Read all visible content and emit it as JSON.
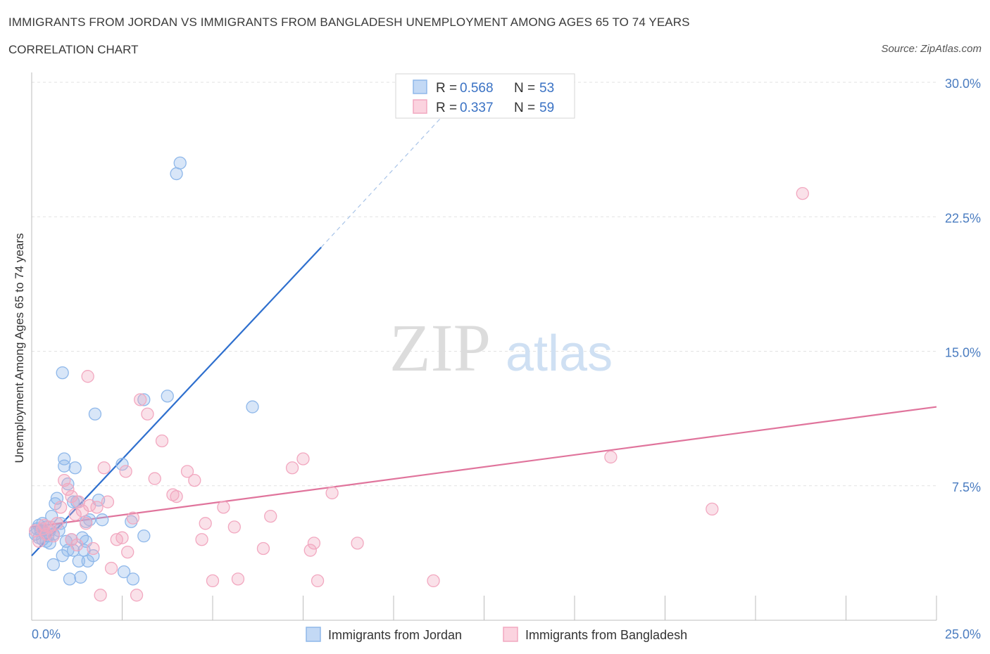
{
  "header": {
    "title": "IMMIGRANTS FROM JORDAN VS IMMIGRANTS FROM BANGLADESH UNEMPLOYMENT AMONG AGES 65 TO 74 YEARS",
    "subtitle": "CORRELATION CHART",
    "source": "Source: ZipAtlas.com"
  },
  "watermark": {
    "zip": "ZIP",
    "atlas": "atlas"
  },
  "chart_data": {
    "type": "scatter",
    "ylabel": "Unemployment Among Ages 65 to 74 years",
    "xlim": [
      0,
      25
    ],
    "ylim": [
      0,
      30
    ],
    "x_tick_labels": [
      "0.0%",
      "25.0%"
    ],
    "y_ticks": [
      7.5,
      15.0,
      22.5,
      30.0
    ],
    "y_tick_labels": [
      "7.5%",
      "15.0%",
      "22.5%",
      "30.0%"
    ],
    "grid": true,
    "legend_stats": [
      {
        "r_label": "R =",
        "r_value": "0.568",
        "n_label": "N =",
        "n_value": "53",
        "color": "#8fb8ea"
      },
      {
        "r_label": "R =",
        "r_value": "0.337",
        "n_label": "N =",
        "n_value": "59",
        "color": "#f2a8c0"
      }
    ],
    "series": [
      {
        "name": "Immigrants from Jordan",
        "color": "#8fb8ea",
        "line_color": "#2e6fce",
        "trend": {
          "x0": 0.0,
          "y0": 3.6,
          "x1": 8.0,
          "y1": 20.8,
          "dash_x1": 11.3,
          "dash_y1": 28.0
        },
        "points": [
          [
            0.1,
            4.8
          ],
          [
            0.15,
            5.1
          ],
          [
            0.2,
            4.6
          ],
          [
            0.2,
            5.3
          ],
          [
            0.25,
            5.0
          ],
          [
            0.3,
            4.5
          ],
          [
            0.3,
            5.4
          ],
          [
            0.35,
            4.9
          ],
          [
            0.4,
            4.4
          ],
          [
            0.4,
            5.2
          ],
          [
            0.45,
            4.7
          ],
          [
            0.5,
            5.0
          ],
          [
            0.5,
            4.3
          ],
          [
            0.55,
            5.8
          ],
          [
            0.6,
            3.1
          ],
          [
            0.6,
            4.8
          ],
          [
            0.65,
            6.5
          ],
          [
            0.7,
            6.8
          ],
          [
            0.75,
            5.0
          ],
          [
            0.8,
            5.4
          ],
          [
            0.85,
            3.6
          ],
          [
            0.85,
            13.8
          ],
          [
            0.9,
            8.6
          ],
          [
            0.9,
            9.0
          ],
          [
            0.95,
            4.4
          ],
          [
            1.0,
            3.9
          ],
          [
            1.0,
            7.6
          ],
          [
            1.05,
            2.3
          ],
          [
            1.1,
            4.5
          ],
          [
            1.15,
            3.9
          ],
          [
            1.15,
            6.6
          ],
          [
            1.2,
            8.5
          ],
          [
            1.25,
            6.6
          ],
          [
            1.3,
            3.3
          ],
          [
            1.35,
            2.4
          ],
          [
            1.4,
            4.6
          ],
          [
            1.45,
            3.9
          ],
          [
            1.5,
            4.4
          ],
          [
            1.5,
            5.5
          ],
          [
            1.55,
            3.3
          ],
          [
            1.6,
            5.6
          ],
          [
            1.7,
            3.6
          ],
          [
            1.75,
            11.5
          ],
          [
            1.85,
            6.7
          ],
          [
            1.95,
            5.6
          ],
          [
            2.5,
            8.7
          ],
          [
            2.55,
            2.7
          ],
          [
            2.75,
            5.5
          ],
          [
            2.8,
            2.3
          ],
          [
            3.1,
            4.7
          ],
          [
            3.1,
            12.3
          ],
          [
            3.75,
            12.5
          ],
          [
            4.0,
            24.9
          ],
          [
            4.1,
            25.5
          ],
          [
            6.1,
            11.9
          ]
        ]
      },
      {
        "name": "Immigrants from Bangladesh",
        "color": "#f2a8c0",
        "line_color": "#e0749c",
        "trend": {
          "x0": 0.0,
          "y0": 5.2,
          "x1": 25.0,
          "y1": 11.9
        },
        "points": [
          [
            0.1,
            5.0
          ],
          [
            0.2,
            4.4
          ],
          [
            0.3,
            5.1
          ],
          [
            0.4,
            4.8
          ],
          [
            0.5,
            5.2
          ],
          [
            0.6,
            4.7
          ],
          [
            0.7,
            5.4
          ],
          [
            0.8,
            6.3
          ],
          [
            0.9,
            7.8
          ],
          [
            1.0,
            7.3
          ],
          [
            1.1,
            6.9
          ],
          [
            1.2,
            5.9
          ],
          [
            1.25,
            4.2
          ],
          [
            1.3,
            6.6
          ],
          [
            1.4,
            6.1
          ],
          [
            1.5,
            5.4
          ],
          [
            1.6,
            6.4
          ],
          [
            1.7,
            4.0
          ],
          [
            1.8,
            6.3
          ],
          [
            1.9,
            1.4
          ],
          [
            2.0,
            8.5
          ],
          [
            2.1,
            6.6
          ],
          [
            2.2,
            2.9
          ],
          [
            2.35,
            4.5
          ],
          [
            2.5,
            4.6
          ],
          [
            2.6,
            8.3
          ],
          [
            2.65,
            3.8
          ],
          [
            2.8,
            5.7
          ],
          [
            2.9,
            1.4
          ],
          [
            3.0,
            12.3
          ],
          [
            3.2,
            11.5
          ],
          [
            3.4,
            7.9
          ],
          [
            3.6,
            10.0
          ],
          [
            3.9,
            7.0
          ],
          [
            4.0,
            6.9
          ],
          [
            4.3,
            8.3
          ],
          [
            4.5,
            7.8
          ],
          [
            4.7,
            4.5
          ],
          [
            4.8,
            5.4
          ],
          [
            5.0,
            2.2
          ],
          [
            5.3,
            6.3
          ],
          [
            5.6,
            5.2
          ],
          [
            5.7,
            2.3
          ],
          [
            6.4,
            4.0
          ],
          [
            6.6,
            5.8
          ],
          [
            7.2,
            8.5
          ],
          [
            7.5,
            9.0
          ],
          [
            7.7,
            3.9
          ],
          [
            7.8,
            4.3
          ],
          [
            7.9,
            2.2
          ],
          [
            8.3,
            7.1
          ],
          [
            9.0,
            4.3
          ],
          [
            11.1,
            2.2
          ],
          [
            16.0,
            9.1
          ],
          [
            18.8,
            6.2
          ],
          [
            21.3,
            23.8
          ],
          [
            1.55,
            13.6
          ],
          [
            0.35,
            5.3
          ],
          [
            1.1,
            4.5
          ]
        ]
      }
    ]
  }
}
